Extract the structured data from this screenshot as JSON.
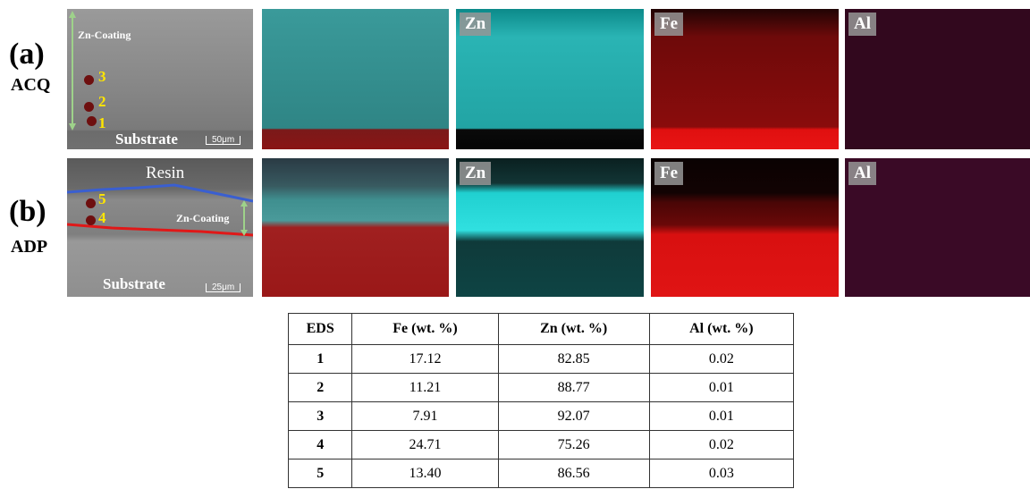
{
  "panels": [
    {
      "label": "(a)",
      "sample": "ACQ",
      "sem": {
        "region": "Zn-Coating",
        "points": [
          "3",
          "2",
          "1"
        ],
        "substrate": "Substrate",
        "scale": "50μm"
      },
      "maps": [
        "Zn",
        "Fe",
        "Al"
      ]
    },
    {
      "label": "(b)",
      "sample": "ADP",
      "sem": {
        "resin": "Resin",
        "region": "Zn-Coating",
        "points": [
          "5",
          "4"
        ],
        "substrate": "Substrate",
        "scale": "25μm"
      },
      "maps": [
        "Zn",
        "Fe",
        "Al"
      ]
    }
  ],
  "table": {
    "header": [
      "EDS",
      "Fe (wt. %)",
      "Zn (wt. %)",
      "Al (wt. %)"
    ],
    "rows": [
      [
        "1",
        "17.12",
        "82.85",
        "0.02"
      ],
      [
        "2",
        "11.21",
        "88.77",
        "0.01"
      ],
      [
        "3",
        "7.91",
        "92.07",
        "0.01"
      ],
      [
        "4",
        "24.71",
        "75.26",
        "0.02"
      ],
      [
        "5",
        "13.40",
        "86.56",
        "0.03"
      ]
    ]
  }
}
